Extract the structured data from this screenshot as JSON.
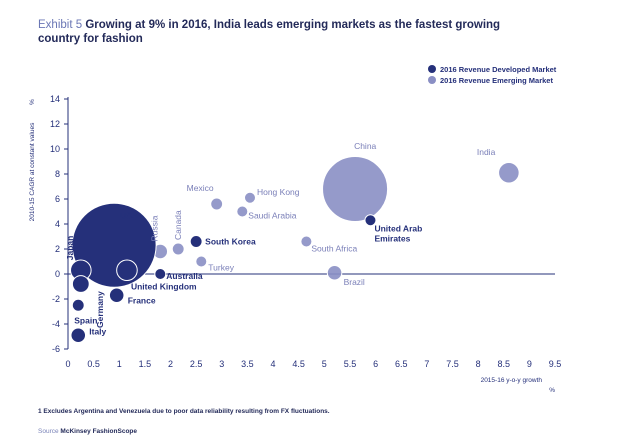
{
  "header": {
    "exhibit": "Exhibit 5",
    "title": "Growing at 9% in 2016, India leads emerging markets as the fastest growing country for fashion"
  },
  "footer": {
    "footnote": "1 Excludes Argentina and Venezuela due to poor data reliability resulting from FX fluctuations.",
    "source_label": "Source",
    "source_name": "McKinsey FashionScope"
  },
  "colors": {
    "developed": "#25307a",
    "emerging": "#8a8fc4",
    "label_developed": "#25307a",
    "label_emerging": "#7a7fb8",
    "axis": "#25307a",
    "tick": "#25307a"
  },
  "chart_data": {
    "type": "scatter",
    "subtype": "bubble",
    "title": "",
    "xlabel": "2015-16 y-o-y growth",
    "xunit": "%",
    "ylabel": "2010-15 CAGR at constant values",
    "yunit": "%",
    "xlim": [
      0,
      9.5
    ],
    "ylim": [
      -6,
      14
    ],
    "xticks": [
      "0",
      "0.5",
      "1",
      "1.5",
      "2",
      "2.5",
      "3",
      "3.5",
      "4",
      "4.5",
      "5",
      "5.5",
      "6",
      "6.5",
      "7",
      "7.5",
      "8",
      "8.5",
      "9",
      "9.5"
    ],
    "yticks": [
      "-6",
      "-4",
      "-2",
      "0",
      "2",
      "4",
      "6",
      "8",
      "10",
      "12",
      "14"
    ],
    "grid": false,
    "legend_position": "top-right",
    "series": [
      {
        "name": "2016 Revenue Developed Market",
        "points": [
          {
            "label": "USA",
            "x": 0.9,
            "y": 2.3,
            "size": 100
          },
          {
            "label": "Japan",
            "x": 0.25,
            "y": 0.3,
            "size": 6
          },
          {
            "label": "Germany",
            "x": 0.25,
            "y": -0.8,
            "size": 4
          },
          {
            "label": "United Kingdom",
            "x": 1.15,
            "y": 0.3,
            "size": 6
          },
          {
            "label": "France",
            "x": 0.95,
            "y": -1.7,
            "size": 3
          },
          {
            "label": "Spain",
            "x": 0.2,
            "y": -2.5,
            "size": 2
          },
          {
            "label": "Italy",
            "x": 0.2,
            "y": -4.9,
            "size": 3
          },
          {
            "label": "South Korea",
            "x": 2.5,
            "y": 2.6,
            "size": 2
          },
          {
            "label": "Australia",
            "x": 1.8,
            "y": 0.0,
            "size": 1
          },
          {
            "label": "United Arab Emirates",
            "x": 5.9,
            "y": 4.3,
            "size": 1
          }
        ]
      },
      {
        "name": "2016 Revenue Emerging Market",
        "points": [
          {
            "label": "China",
            "x": 5.6,
            "y": 6.8,
            "size": 60
          },
          {
            "label": "India",
            "x": 8.6,
            "y": 8.1,
            "size": 6
          },
          {
            "label": "Russia",
            "x": 1.8,
            "y": 1.8,
            "size": 3
          },
          {
            "label": "Canada",
            "x": 2.15,
            "y": 2.0,
            "size": 2
          },
          {
            "label": "Mexico",
            "x": 2.9,
            "y": 5.6,
            "size": 2
          },
          {
            "label": "Hong Kong",
            "x": 3.55,
            "y": 6.1,
            "size": 1
          },
          {
            "label": "Saudi Arabia",
            "x": 3.4,
            "y": 5.0,
            "size": 1
          },
          {
            "label": "Turkey",
            "x": 2.6,
            "y": 1.0,
            "size": 1
          },
          {
            "label": "South Africa",
            "x": 4.65,
            "y": 2.6,
            "size": 1
          },
          {
            "label": "Brazil",
            "x": 5.2,
            "y": 0.1,
            "size": 3
          }
        ]
      }
    ]
  }
}
